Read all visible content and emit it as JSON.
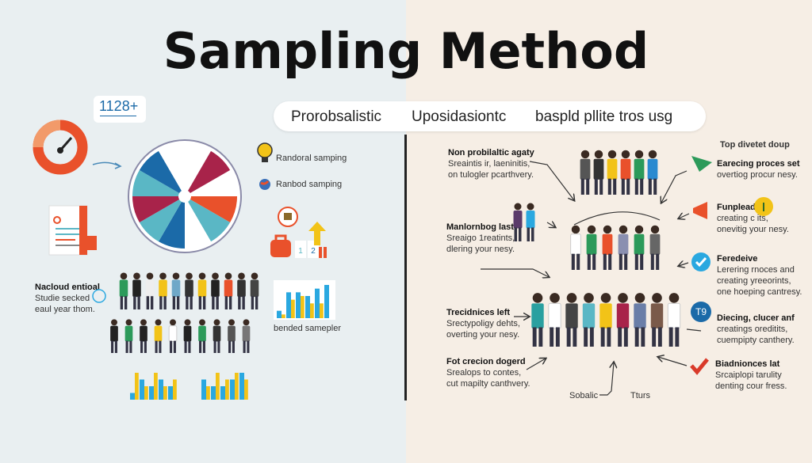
{
  "title": "Sampling Method",
  "header_pills": [
    "Prorobsalistic",
    "Uposidasiontc",
    "baspld pllite tros usg"
  ],
  "left": {
    "counter_badge": "1128+",
    "legend": [
      {
        "icon": "lightbulb-icon",
        "label": "Randoral samping"
      },
      {
        "icon": "globe-icon",
        "label": "Ranbod samping"
      }
    ],
    "block_numbers": [
      "1",
      "2"
    ],
    "note": {
      "title": "Nacloud entioal",
      "lines": [
        "Studie secked",
        "eaul year thom."
      ]
    },
    "chart_caption": "bended samepler",
    "wheel_colors": [
      "#c0c0c0",
      "#a8234a",
      "#ffffff",
      "#e9512b",
      "#5ab7c5",
      "#ffffff",
      "#1b6aa8",
      "#5ab7c5",
      "#a8234a",
      "#5ab7c5",
      "#1b6aa8",
      "#ffffff"
    ],
    "bar_chart": {
      "blue": [
        2,
        7,
        7,
        6,
        8,
        9
      ],
      "yellow": [
        1,
        5,
        6,
        4,
        4
      ]
    }
  },
  "right": {
    "top_right_heading": "Top divetet doup",
    "left_notes": [
      {
        "title": "Non probilaltic agaty",
        "lines": [
          "Sreaintis ir, laeninitis,",
          "on tulogler pcarthvery."
        ]
      },
      {
        "title": "Manlornbog last",
        "lines": [
          "Sreaigo 1reatints,",
          "dlering your nesy."
        ]
      },
      {
        "title": "Trecidnices left",
        "lines": [
          "Srectypoligy dehts,",
          "overting your nesy."
        ]
      },
      {
        "title": "Fot crecion dogerd",
        "lines": [
          "Srealops to contes,",
          "cut mapilty canthvery."
        ]
      }
    ],
    "right_notes": [
      {
        "icon": "paper-plane-icon",
        "title": "Earecing proces set",
        "lines": [
          "overtiog procur nesy."
        ]
      },
      {
        "icon": "megaphone-icon",
        "title": "Funpleadl'",
        "lines": [
          "creating c  its,",
          "onevitig your nesy."
        ]
      },
      {
        "icon": "check-badge-icon",
        "title": "Feredeive",
        "lines": [
          "Lerering rnoces and",
          "creating yreeorints,",
          "one hoeping cantresy."
        ]
      },
      {
        "icon": "number-badge-icon",
        "badge": "T9",
        "title": "Diecing, clucer anf",
        "lines": [
          "creatings oreditits,",
          "cuempipty canthery."
        ]
      },
      {
        "icon": "checkmark-icon",
        "title": "Biadnionces lat",
        "lines": [
          "Srcaiplopi tarulity",
          "denting cour fress."
        ]
      }
    ],
    "bottom_labels": [
      "Sobalic",
      "Tturs"
    ]
  },
  "colors": {
    "orange": "#e9512b",
    "crimson": "#a8234a",
    "teal": "#5ab7c5",
    "blue": "#1b6aa8",
    "yellow": "#f2c318",
    "green": "#2c9a5a",
    "sky": "#2aa8e0"
  },
  "crowds": {
    "left_row1": [
      "#2c9a5a",
      "#222",
      "#eee",
      "#f2c318",
      "#6fa8c8",
      "#333",
      "#f2c318",
      "#222",
      "#e9512b",
      "#333",
      "#444"
    ],
    "left_row2": [
      "#222",
      "#2c9a5a",
      "#222",
      "#f2c318",
      "#fff",
      "#222",
      "#2c9a5a",
      "#333",
      "#555",
      "#777"
    ],
    "right_top": [
      "#555",
      "#333",
      "#f2c318",
      "#e9512b",
      "#2c9a5a",
      "#2a8ad0"
    ],
    "right_mid": [
      "#fff",
      "#2c9a5a",
      "#e9512b",
      "#8a8fb0",
      "#2c9a5a",
      "#666"
    ],
    "right_bottom": [
      "#2aa0a0",
      "#fff",
      "#444",
      "#5ab7c5",
      "#f2c318",
      "#a8234a",
      "#6a7ea8",
      "#7a5a4a",
      "#fff"
    ]
  }
}
